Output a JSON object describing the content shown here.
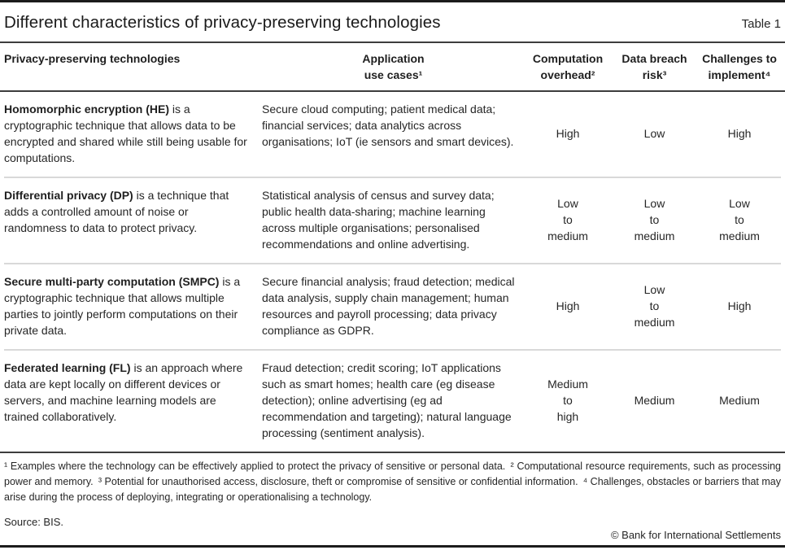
{
  "header": {
    "title": "Different characteristics of privacy-preserving technologies",
    "table_label": "Table 1"
  },
  "table": {
    "columns": [
      "Privacy-preserving technologies",
      "Application\nuse cases¹",
      "Computation\noverhead²",
      "Data breach\nrisk³",
      "Challenges to\nimplement⁴"
    ],
    "rows": [
      {
        "term": "Homomorphic encryption (HE)",
        "definition": " is a cryptographic technique that allows data to be encrypted and shared while still being usable for computations.",
        "use_cases": "Secure cloud computing; patient medical data; financial services; data analytics across organisations; IoT (ie sensors and smart devices).",
        "computation_overhead": "High",
        "data_breach_risk": "Low",
        "challenges_to_implement": "High"
      },
      {
        "term": "Differential privacy (DP)",
        "definition": " is a technique that adds a controlled amount of noise or randomness to data to protect privacy.",
        "use_cases": "Statistical analysis of census and survey data; public health data-sharing; machine learning across multiple organisations; personalised recommendations and online advertising.",
        "computation_overhead": "Low\nto\nmedium",
        "data_breach_risk": "Low\nto\nmedium",
        "challenges_to_implement": "Low\nto\nmedium"
      },
      {
        "term": "Secure multi-party computation (SMPC)",
        "definition": " is a cryptographic technique that allows multiple parties to jointly perform computations on their private data.",
        "use_cases": "Secure financial analysis; fraud detection; medical data analysis, supply chain management; human resources and payroll processing; data privacy compliance as GDPR.",
        "computation_overhead": "High",
        "data_breach_risk": "Low\nto\nmedium",
        "challenges_to_implement": "High"
      },
      {
        "term": "Federated learning (FL)",
        "definition": " is an approach where data are kept locally on different devices or servers, and machine learning models are trained collaboratively.",
        "use_cases": "Fraud detection; credit scoring; IoT applications such as smart homes; health care (eg disease detection); online advertising (eg ad recommendation and targeting); natural language processing (sentiment analysis).",
        "computation_overhead": "Medium\nto\nhigh",
        "data_breach_risk": "Medium",
        "challenges_to_implement": "Medium"
      }
    ]
  },
  "footnotes": "¹ Examples where the technology can be effectively applied to protect the privacy of sensitive or personal data. ² Computational resource requirements, such as processing power and memory. ³ Potential for unauthorised access, disclosure, theft or compromise of sensitive or confidential information. ⁴ Challenges, obstacles or barriers that may arise during the process of deploying, integrating or operationalising a technology.",
  "source": "Source: BIS.",
  "copyright": "© Bank for International Settlements",
  "colors": {
    "text": "#262626",
    "heavy_rule": "#1c1c1c",
    "dark_rule": "#3d3d3d",
    "light_rule": "#d9d9d9",
    "background": "#ffffff"
  }
}
